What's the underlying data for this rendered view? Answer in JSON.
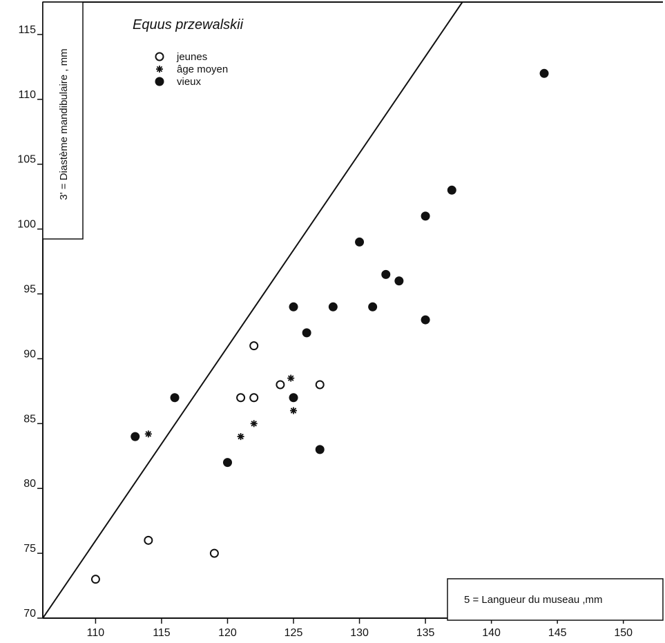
{
  "chart_data": {
    "type": "scatter",
    "title": "Equus przewalskii",
    "xlabel": "5 = Langueur du museau ,mm",
    "ylabel": "3' = Diastème mandibulaire , mm",
    "xlim": [
      106,
      153
    ],
    "ylim": [
      70,
      117.5
    ],
    "xticks": [
      110,
      115,
      120,
      125,
      130,
      135,
      140,
      145,
      150
    ],
    "yticks": [
      70,
      75,
      80,
      85,
      90,
      95,
      100,
      105,
      110,
      115
    ],
    "legend_position": "top-left",
    "series": [
      {
        "name": "jeunes",
        "marker": "open-circle",
        "points": [
          [
            110,
            73
          ],
          [
            114,
            76
          ],
          [
            119,
            75
          ],
          [
            121,
            87
          ],
          [
            122,
            87
          ],
          [
            122,
            91
          ],
          [
            124,
            88
          ],
          [
            127,
            88
          ]
        ]
      },
      {
        "name": "âge moyen",
        "marker": "asterisk",
        "points": [
          [
            114,
            84.2
          ],
          [
            121,
            84
          ],
          [
            122,
            85
          ],
          [
            124.8,
            88.5
          ],
          [
            125,
            86
          ]
        ]
      },
      {
        "name": "vieux",
        "marker": "filled-circle",
        "points": [
          [
            113,
            84
          ],
          [
            116,
            87
          ],
          [
            120,
            82
          ],
          [
            125,
            94
          ],
          [
            125,
            87
          ],
          [
            126,
            92
          ],
          [
            127,
            83
          ],
          [
            128,
            94
          ],
          [
            130,
            99
          ],
          [
            131,
            94
          ],
          [
            132,
            96.5
          ],
          [
            133,
            96
          ],
          [
            135,
            101
          ],
          [
            135,
            93
          ],
          [
            137,
            103
          ],
          [
            144,
            112
          ]
        ]
      }
    ],
    "regression_line": {
      "x1": 106,
      "y1": 70,
      "x2": 137.8,
      "y2": 117.5
    }
  }
}
